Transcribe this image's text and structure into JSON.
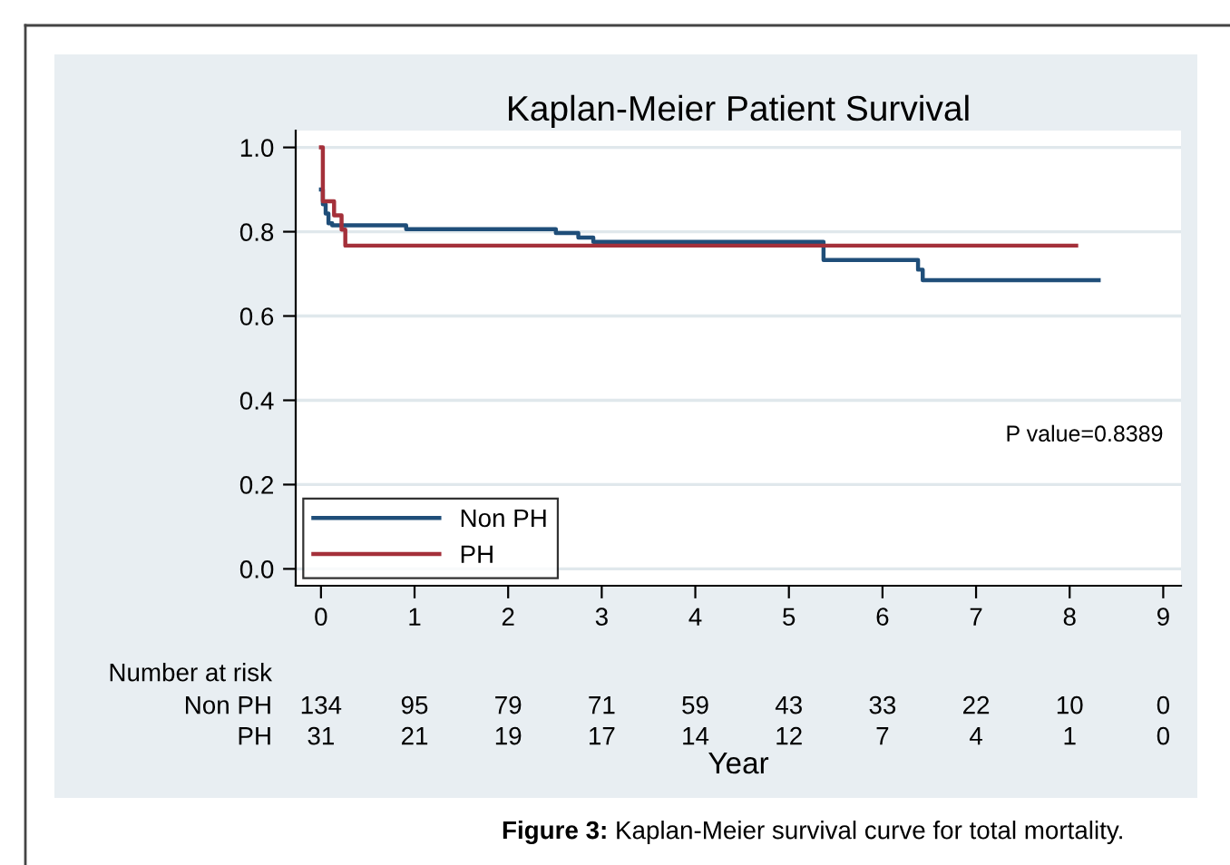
{
  "chart_data": {
    "type": "step",
    "title": "Kaplan-Meier Patient Survival",
    "xlabel": "Year",
    "series": [
      {
        "name": "Non PH",
        "color": "#1f4e79",
        "x": [
          0,
          0.02,
          0.05,
          0.08,
          0.12,
          0.3,
          0.91,
          2.51,
          2.75,
          2.91,
          5.37,
          6.38,
          6.43,
          8.31
        ],
        "values": [
          0.9,
          0.865,
          0.843,
          0.82,
          0.815,
          0.815,
          0.806,
          0.797,
          0.786,
          0.776,
          0.733,
          0.71,
          0.685,
          0.685
        ]
      },
      {
        "name": "PH",
        "color": "#a4303a",
        "x": [
          0,
          0.02,
          0.14,
          0.22,
          0.26,
          8.07
        ],
        "values": [
          1.0,
          0.872,
          0.839,
          0.805,
          0.767,
          0.767
        ]
      }
    ],
    "xlim": [
      -0.27,
      9.19
    ],
    "ylim": [
      -0.04,
      1.04
    ],
    "xticks": [
      0,
      1,
      2,
      3,
      4,
      5,
      6,
      7,
      8,
      9
    ],
    "yticks": [
      {
        "value": 0,
        "label": "0.0"
      },
      {
        "value": 0.2,
        "label": "0.2"
      },
      {
        "value": 0.4,
        "label": "0.4"
      },
      {
        "value": 0.6,
        "label": "0.6"
      },
      {
        "value": 0.8,
        "label": "0.8"
      },
      {
        "value": 1,
        "label": "1.0"
      }
    ],
    "grid": "y",
    "legend": "bottom left",
    "annotations": [
      "P value=0.8389",
      "Number at risk",
      "Non PH",
      "134",
      "95",
      "79",
      "71",
      "59",
      "43",
      "33",
      "22",
      "10",
      "0",
      "PH",
      "31",
      "21",
      "19",
      "17",
      "14",
      "12",
      "7",
      "4",
      "1",
      "0",
      "Figure 3:",
      "Kaplan-Meier survival curve for total mortality."
    ]
  }
}
